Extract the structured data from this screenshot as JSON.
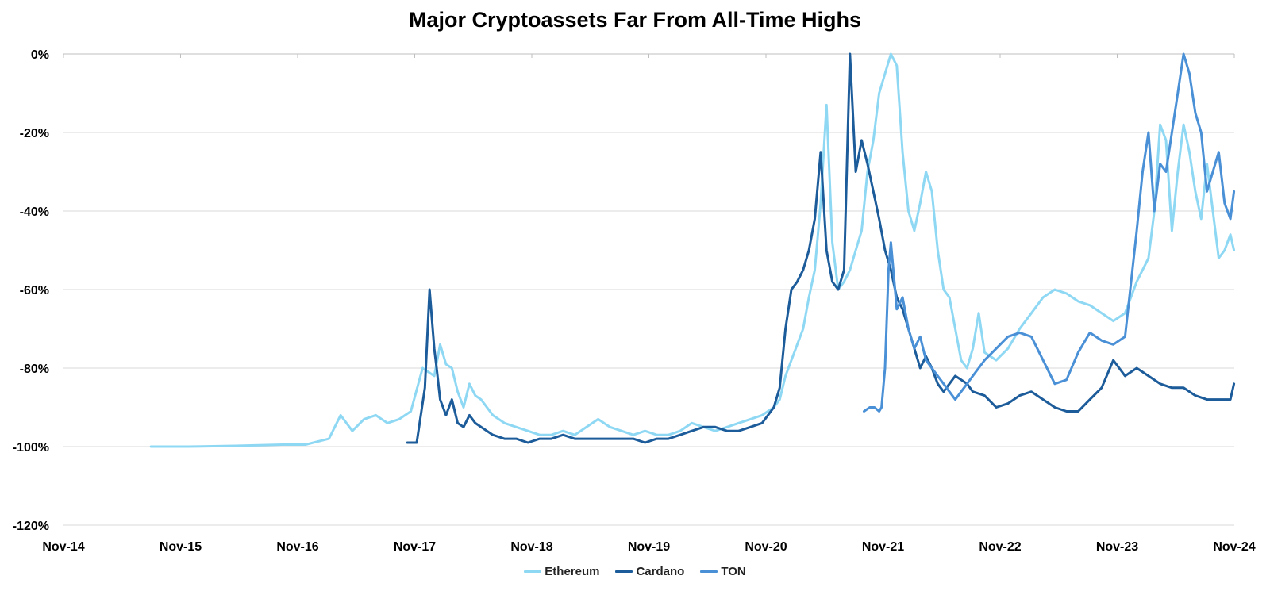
{
  "chart_data": {
    "type": "line",
    "title": "Major Cryptoassets Far From All-Time Highs",
    "xlabel": "",
    "ylabel": "",
    "ylim": [
      -120,
      0
    ],
    "y_ticks": [
      0,
      -20,
      -40,
      -60,
      -80,
      -100,
      -120
    ],
    "y_tick_labels": [
      "0%",
      "-20%",
      "-40%",
      "-60%",
      "-80%",
      "-100%",
      "-120%"
    ],
    "x_range": [
      2014.833,
      2024.833
    ],
    "x_ticks": [
      2014.833,
      2015.833,
      2016.833,
      2017.833,
      2018.833,
      2019.833,
      2020.833,
      2021.833,
      2022.833,
      2023.833,
      2024.833
    ],
    "x_tick_labels": [
      "Nov-14",
      "Nov-15",
      "Nov-16",
      "Nov-17",
      "Nov-18",
      "Nov-19",
      "Nov-20",
      "Nov-21",
      "Nov-22",
      "Nov-23",
      "Nov-24"
    ],
    "grid": true,
    "legend_position": "bottom",
    "series": [
      {
        "name": "Ethereum",
        "color": "#8fd8f4",
        "x": [
          2015.58,
          2015.9,
          2016.3,
          2016.7,
          2016.9,
          2017.1,
          2017.2,
          2017.3,
          2017.4,
          2017.5,
          2017.6,
          2017.7,
          2017.8,
          2017.9,
          2018.0,
          2018.05,
          2018.1,
          2018.15,
          2018.2,
          2018.25,
          2018.3,
          2018.35,
          2018.4,
          2018.45,
          2018.5,
          2018.6,
          2018.7,
          2018.8,
          2018.9,
          2019.0,
          2019.1,
          2019.2,
          2019.3,
          2019.4,
          2019.5,
          2019.6,
          2019.7,
          2019.8,
          2019.9,
          2020.0,
          2020.1,
          2020.2,
          2020.3,
          2020.4,
          2020.5,
          2020.6,
          2020.7,
          2020.8,
          2020.9,
          2020.95,
          2021.0,
          2021.05,
          2021.1,
          2021.15,
          2021.2,
          2021.25,
          2021.3,
          2021.35,
          2021.4,
          2021.45,
          2021.5,
          2021.55,
          2021.6,
          2021.65,
          2021.7,
          2021.75,
          2021.8,
          2021.85,
          2021.9,
          2021.95,
          2022.0,
          2022.05,
          2022.1,
          2022.15,
          2022.2,
          2022.25,
          2022.3,
          2022.35,
          2022.4,
          2022.45,
          2022.5,
          2022.55,
          2022.6,
          2022.65,
          2022.7,
          2022.8,
          2022.9,
          2023.0,
          2023.1,
          2023.2,
          2023.3,
          2023.4,
          2023.5,
          2023.6,
          2023.7,
          2023.8,
          2023.9,
          2024.0,
          2024.1,
          2024.15,
          2024.2,
          2024.25,
          2024.3,
          2024.35,
          2024.4,
          2024.45,
          2024.5,
          2024.55,
          2024.6,
          2024.65,
          2024.7,
          2024.75,
          2024.8,
          2024.83
        ],
        "y": [
          -100,
          -100,
          -99.8,
          -99.5,
          -99.5,
          -98,
          -92,
          -96,
          -93,
          -92,
          -94,
          -93,
          -91,
          -80,
          -82,
          -74,
          -79,
          -80,
          -86,
          -90,
          -84,
          -87,
          -88,
          -90,
          -92,
          -94,
          -95,
          -96,
          -97,
          -97,
          -96,
          -97,
          -95,
          -93,
          -95,
          -96,
          -97,
          -96,
          -97,
          -97,
          -96,
          -94,
          -95,
          -96,
          -95,
          -94,
          -93,
          -92,
          -90,
          -88,
          -82,
          -78,
          -74,
          -70,
          -62,
          -55,
          -38,
          -13,
          -48,
          -60,
          -58,
          -55,
          -50,
          -45,
          -30,
          -22,
          -10,
          -5,
          0,
          -3,
          -25,
          -40,
          -45,
          -38,
          -30,
          -35,
          -50,
          -60,
          -62,
          -70,
          -78,
          -80,
          -75,
          -66,
          -76,
          -78,
          -75,
          -70,
          -66,
          -62,
          -60,
          -61,
          -63,
          -64,
          -66,
          -68,
          -66,
          -58,
          -52,
          -40,
          -18,
          -22,
          -45,
          -30,
          -18,
          -25,
          -35,
          -42,
          -28,
          -40,
          -52,
          -50,
          -46,
          -50
        ]
      },
      {
        "name": "Cardano",
        "color": "#1d5c9a",
        "x": [
          2017.77,
          2017.85,
          2017.92,
          2017.96,
          2018.0,
          2018.02,
          2018.05,
          2018.1,
          2018.15,
          2018.2,
          2018.25,
          2018.3,
          2018.35,
          2018.4,
          2018.45,
          2018.5,
          2018.6,
          2018.7,
          2018.8,
          2018.9,
          2019.0,
          2019.1,
          2019.2,
          2019.3,
          2019.4,
          2019.5,
          2019.6,
          2019.7,
          2019.8,
          2019.9,
          2020.0,
          2020.1,
          2020.2,
          2020.3,
          2020.4,
          2020.5,
          2020.6,
          2020.7,
          2020.8,
          2020.9,
          2020.95,
          2021.0,
          2021.05,
          2021.1,
          2021.15,
          2021.2,
          2021.25,
          2021.3,
          2021.35,
          2021.4,
          2021.45,
          2021.5,
          2021.55,
          2021.6,
          2021.65,
          2021.7,
          2021.75,
          2021.8,
          2021.85,
          2021.9,
          2021.95,
          2022.0,
          2022.05,
          2022.1,
          2022.15,
          2022.2,
          2022.25,
          2022.3,
          2022.35,
          2022.4,
          2022.45,
          2022.5,
          2022.55,
          2022.6,
          2022.7,
          2022.8,
          2022.9,
          2023.0,
          2023.1,
          2023.2,
          2023.3,
          2023.4,
          2023.5,
          2023.6,
          2023.7,
          2023.8,
          2023.9,
          2024.0,
          2024.1,
          2024.2,
          2024.3,
          2024.4,
          2024.5,
          2024.6,
          2024.7,
          2024.8,
          2024.83
        ],
        "y": [
          -99,
          -99,
          -85,
          -60,
          -75,
          -80,
          -88,
          -92,
          -88,
          -94,
          -95,
          -92,
          -94,
          -95,
          -96,
          -97,
          -98,
          -98,
          -99,
          -98,
          -98,
          -97,
          -98,
          -98,
          -98,
          -98,
          -98,
          -98,
          -99,
          -98,
          -98,
          -97,
          -96,
          -95,
          -95,
          -96,
          -96,
          -95,
          -94,
          -90,
          -85,
          -70,
          -60,
          -58,
          -55,
          -50,
          -42,
          -25,
          -50,
          -58,
          -60,
          -55,
          0,
          -30,
          -22,
          -28,
          -35,
          -42,
          -50,
          -55,
          -62,
          -65,
          -70,
          -75,
          -80,
          -77,
          -80,
          -84,
          -86,
          -84,
          -82,
          -83,
          -84,
          -86,
          -87,
          -90,
          -89,
          -87,
          -86,
          -88,
          -90,
          -91,
          -91,
          -88,
          -85,
          -78,
          -82,
          -80,
          -82,
          -84,
          -85,
          -85,
          -87,
          -88,
          -88,
          -88,
          -84
        ]
      },
      {
        "name": "TON",
        "color": "#4a90d6",
        "x": [
          2021.67,
          2021.72,
          2021.76,
          2021.8,
          2021.82,
          2021.85,
          2021.88,
          2021.9,
          2021.95,
          2022.0,
          2022.05,
          2022.1,
          2022.15,
          2022.2,
          2022.25,
          2022.3,
          2022.35,
          2022.4,
          2022.45,
          2022.5,
          2022.55,
          2022.6,
          2022.65,
          2022.7,
          2022.8,
          2022.9,
          2023.0,
          2023.1,
          2023.2,
          2023.3,
          2023.4,
          2023.5,
          2023.6,
          2023.7,
          2023.8,
          2023.9,
          2024.0,
          2024.05,
          2024.1,
          2024.15,
          2024.2,
          2024.25,
          2024.3,
          2024.35,
          2024.4,
          2024.45,
          2024.5,
          2024.55,
          2024.6,
          2024.65,
          2024.7,
          2024.75,
          2024.8,
          2024.83
        ],
        "y": [
          -91,
          -90,
          -90,
          -91,
          -90,
          -80,
          -55,
          -48,
          -65,
          -62,
          -70,
          -75,
          -72,
          -78,
          -80,
          -82,
          -84,
          -86,
          -88,
          -86,
          -84,
          -82,
          -80,
          -78,
          -75,
          -72,
          -71,
          -72,
          -78,
          -84,
          -83,
          -76,
          -71,
          -73,
          -74,
          -72,
          -45,
          -30,
          -20,
          -40,
          -28,
          -30,
          -20,
          -10,
          0,
          -5,
          -15,
          -20,
          -35,
          -30,
          -25,
          -38,
          -42,
          -35
        ]
      }
    ]
  }
}
